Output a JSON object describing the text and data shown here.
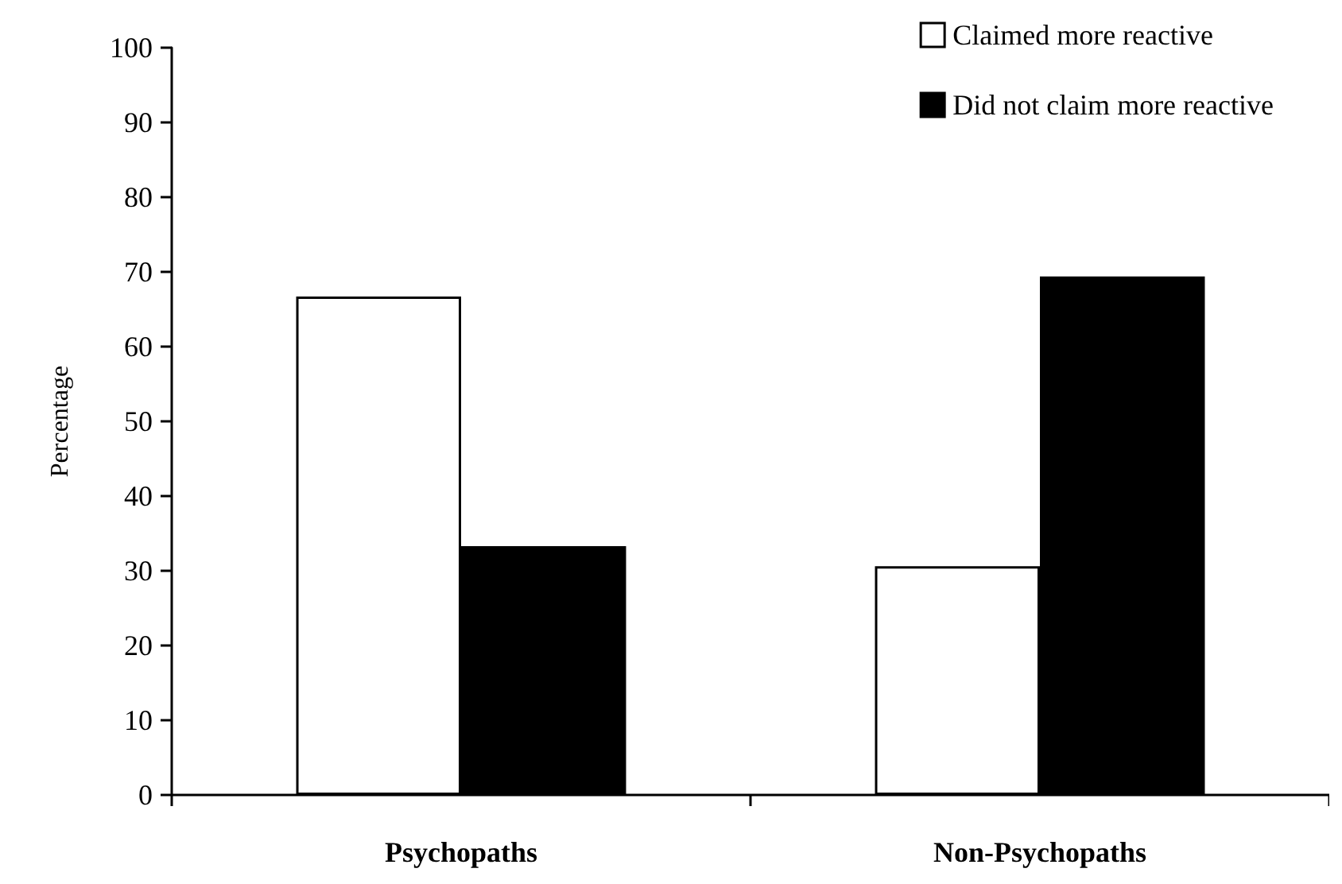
{
  "chart_data": {
    "type": "bar",
    "ylabel": "Percentage",
    "categories": [
      "Psychopaths",
      "Non-Psychopaths"
    ],
    "series": [
      {
        "name": "Claimed more reactive",
        "color": "#ffffff",
        "values": [
          66.7,
          30.6
        ]
      },
      {
        "name": "Did not claim more reactive",
        "color": "#000000",
        "values": [
          33.3,
          69.4
        ]
      }
    ],
    "ylim": [
      0,
      100
    ],
    "yticks": [
      0,
      10,
      20,
      30,
      40,
      50,
      60,
      70,
      80,
      90,
      100
    ],
    "grid": false,
    "legend": "top right"
  }
}
